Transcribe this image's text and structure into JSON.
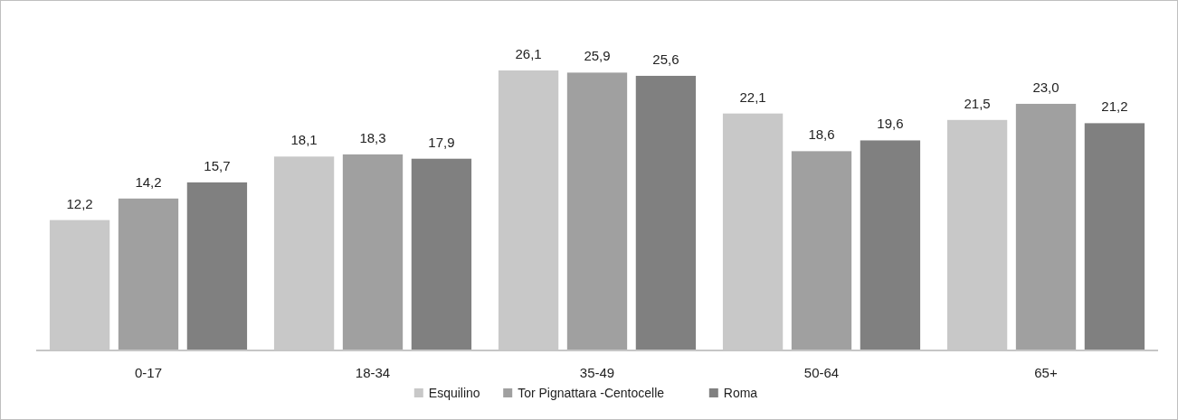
{
  "chart_data": {
    "type": "bar",
    "categories": [
      "0-17",
      "18-34",
      "35-49",
      "50-64",
      "65+"
    ],
    "series": [
      {
        "name": "Esquilino",
        "color": "#c8c8c8",
        "values": [
          12.2,
          18.1,
          26.1,
          22.1,
          21.5
        ],
        "value_labels": [
          "12,2",
          "18,1",
          "26,1",
          "22,1",
          "21,5"
        ]
      },
      {
        "name": "Tor Pignattara -Centocelle",
        "color": "#a0a0a0",
        "values": [
          14.2,
          18.3,
          25.9,
          18.6,
          23.0
        ],
        "value_labels": [
          "14,2",
          "18,3",
          "25,9",
          "18,6",
          "23,0"
        ]
      },
      {
        "name": "Roma",
        "color": "#808080",
        "values": [
          15.7,
          17.9,
          25.6,
          19.6,
          21.2
        ],
        "value_labels": [
          "15,7",
          "17,9",
          "25,6",
          "19,6",
          "21,2"
        ]
      }
    ],
    "legend": "bottom"
  }
}
